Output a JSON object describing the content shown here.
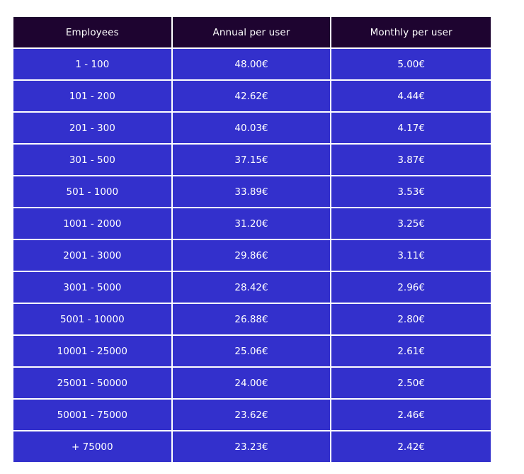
{
  "table": {
    "headers": [
      "Employees",
      "Annual per user",
      "Monthly per user"
    ],
    "rows": [
      [
        "1 - 100",
        "48.00€",
        "5.00€"
      ],
      [
        "101 - 200",
        "42.62€",
        "4.44€"
      ],
      [
        "201 - 300",
        "40.03€",
        "4.17€"
      ],
      [
        "301 - 500",
        "37.15€",
        "3.87€"
      ],
      [
        "501 - 1000",
        "33.89€",
        "3.53€"
      ],
      [
        "1001 - 2000",
        "31.20€",
        "3.25€"
      ],
      [
        "2001 - 3000",
        "29.86€",
        "3.11€"
      ],
      [
        "3001 - 5000",
        "28.42€",
        "2.96€"
      ],
      [
        "5001 - 10000",
        "26.88€",
        "2.80€"
      ],
      [
        "10001 - 25000",
        "25.06€",
        "2.61€"
      ],
      [
        "25001 - 50000",
        "24.00€",
        "2.50€"
      ],
      [
        "50001 - 75000",
        "23.62€",
        "2.46€"
      ],
      [
        "+ 75000",
        "23.23€",
        "2.42€"
      ]
    ]
  },
  "colors": {
    "header_background": "#1e0430",
    "row_background": "#3330cc",
    "text": "#ffffff",
    "border": "#ffffff"
  }
}
